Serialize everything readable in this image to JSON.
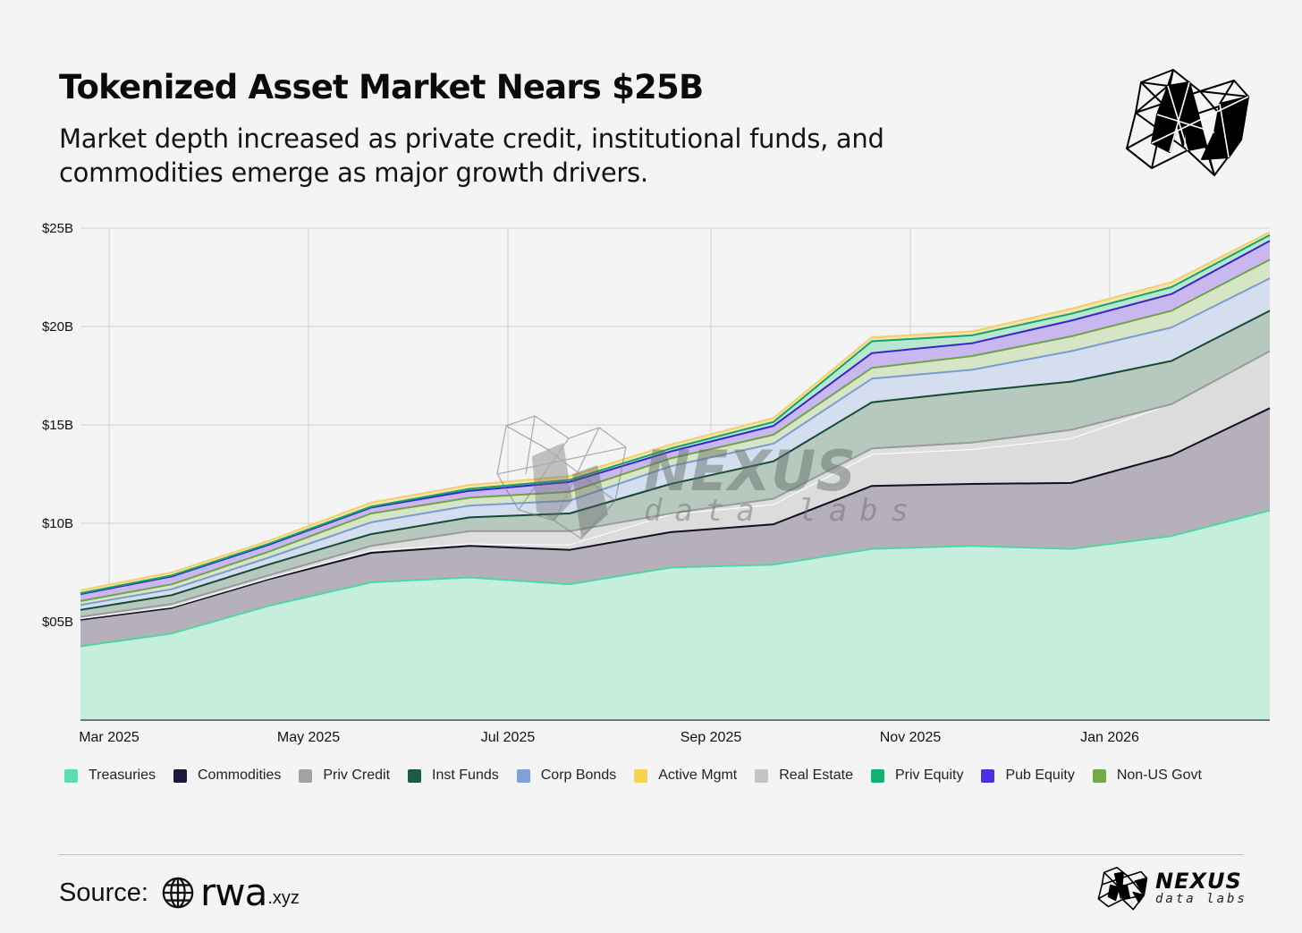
{
  "header": {
    "title": "Tokenized Asset Market Nears $25B",
    "subtitle": "Market depth increased as private credit, institutional funds, and commodities emerge as major growth drivers."
  },
  "watermark": {
    "brand": "NEXUS",
    "tagline": "data labs"
  },
  "legend": [
    {
      "label": "Treasuries",
      "color": "#5fdcac"
    },
    {
      "label": "Commodities",
      "color": "#1b1a3a"
    },
    {
      "label": "Priv Credit",
      "color": "#a3a3a3"
    },
    {
      "label": "Inst Funds",
      "color": "#1d5c42"
    },
    {
      "label": "Corp Bonds",
      "color": "#7fa0d8"
    },
    {
      "label": "Active Mgmt",
      "color": "#f7d24e"
    },
    {
      "label": "Real Estate",
      "color": "#c4c4c4"
    },
    {
      "label": "Priv Equity",
      "color": "#14b072"
    },
    {
      "label": "Pub Equity",
      "color": "#4b30dc"
    },
    {
      "label": "Non-US Govt",
      "color": "#73a94a"
    }
  ],
  "footer": {
    "source_label": "Source:",
    "source_brand": "rwa",
    "source_ext": ".xyz",
    "brand": "NEXUS",
    "brand_sub": "data labs"
  },
  "chart_data": {
    "type": "area",
    "stacked": true,
    "title": "Tokenized Asset Market Nears $25B",
    "subtitle": "Market depth increased as private credit, institutional funds, and commodities emerge as major growth drivers.",
    "xlabel": "",
    "ylabel": "",
    "ylim": [
      0,
      25
    ],
    "yunit": "$B",
    "y_ticks": [
      "$05B",
      "$10B",
      "$15B",
      "$20B",
      "$25B"
    ],
    "y_tick_values": [
      5,
      10,
      15,
      20,
      25
    ],
    "x_ticks": [
      "Mar 2025",
      "May 2025",
      "Jul 2025",
      "Sep 2025",
      "Nov 2025",
      "Jan 2026"
    ],
    "grid": true,
    "legend_position": "bottom",
    "x": [
      "2025-02-15",
      "2025-03-30",
      "2025-04-28",
      "2025-05-29",
      "2025-06-28",
      "2025-07-28",
      "2025-08-28",
      "2025-09-28",
      "2025-10-28",
      "2025-11-28",
      "2025-12-28",
      "2026-01-28",
      "2026-02-27"
    ],
    "series": [
      {
        "name": "Treasuries",
        "values": [
          3.75,
          4.4,
          5.8,
          7.0,
          7.25,
          6.9,
          7.75,
          7.9,
          8.7,
          8.85,
          8.7,
          9.35,
          10.65
        ]
      },
      {
        "name": "Commodities",
        "values": [
          1.35,
          1.3,
          1.35,
          1.5,
          1.6,
          1.75,
          1.8,
          2.05,
          3.2,
          3.15,
          3.35,
          4.1,
          5.2
        ]
      },
      {
        "name": "Real Estate",
        "values": [
          0.05,
          0.05,
          0.05,
          0.1,
          0.1,
          0.25,
          0.9,
          1.0,
          1.6,
          1.75,
          2.25,
          2.6,
          2.9
        ]
      },
      {
        "name": "Priv Credit",
        "values": [
          0.1,
          0.15,
          0.15,
          0.25,
          0.65,
          0.7,
          0.05,
          0.3,
          0.3,
          0.35,
          0.45,
          0.0,
          0.0
        ]
      },
      {
        "name": "Inst Funds",
        "values": [
          0.35,
          0.45,
          0.55,
          0.6,
          0.7,
          0.9,
          1.5,
          1.9,
          2.35,
          2.6,
          2.45,
          2.2,
          2.05
        ]
      },
      {
        "name": "Corp Bonds",
        "values": [
          0.25,
          0.3,
          0.35,
          0.6,
          0.6,
          0.65,
          0.9,
          0.9,
          1.2,
          1.1,
          1.55,
          1.7,
          1.65
        ]
      },
      {
        "name": "Non-US Govt",
        "values": [
          0.2,
          0.25,
          0.3,
          0.45,
          0.4,
          0.45,
          0.4,
          0.45,
          0.55,
          0.7,
          0.75,
          0.85,
          0.95
        ]
      },
      {
        "name": "Pub Equity",
        "values": [
          0.35,
          0.4,
          0.35,
          0.3,
          0.35,
          0.5,
          0.35,
          0.45,
          0.75,
          0.65,
          0.8,
          0.85,
          0.95
        ]
      },
      {
        "name": "Priv Equity",
        "values": [
          0.05,
          0.05,
          0.05,
          0.05,
          0.1,
          0.1,
          0.15,
          0.2,
          0.6,
          0.4,
          0.35,
          0.35,
          0.3
        ]
      },
      {
        "name": "Active Mgmt",
        "values": [
          0.15,
          0.15,
          0.15,
          0.2,
          0.2,
          0.2,
          0.2,
          0.2,
          0.2,
          0.2,
          0.25,
          0.25,
          0.15
        ]
      }
    ],
    "totals": [
      6.6,
      7.5,
      9.1,
      11.05,
      11.95,
      12.4,
      14.0,
      15.35,
      19.4,
      19.75,
      20.9,
      22.25,
      24.8
    ],
    "stack_order_bottom_to_top": [
      "Treasuries",
      "Commodities",
      "Real Estate",
      "Priv Credit",
      "Inst Funds",
      "Corp Bonds",
      "Non-US Govt",
      "Pub Equity",
      "Priv Equity",
      "Active Mgmt"
    ],
    "fill_colors": {
      "Treasuries": "#c6eedc",
      "Commodities": "#b5b0bb",
      "Real Estate": "#dcdcdc",
      "Priv Credit": "#dedede",
      "Inst Funds": "#b7c9bf",
      "Corp Bonds": "#d4deee",
      "Non-US Govt": "#d5e5c5",
      "Pub Equity": "#c9b8f0",
      "Priv Equity": "#b8e6cf",
      "Active Mgmt": "#f3e4b0"
    },
    "line_colors": {
      "Treasuries": "#4fd6a2",
      "Commodities": "#111126",
      "Real Estate": "#ffffff",
      "Priv Credit": "#9a9a9a",
      "Inst Funds": "#144a33",
      "Corp Bonds": "#7b9bd2",
      "Non-US Govt": "#73a04a",
      "Pub Equity": "#3a26c8",
      "Priv Equity": "#11a56a",
      "Active Mgmt": "#f2cf6a"
    }
  }
}
